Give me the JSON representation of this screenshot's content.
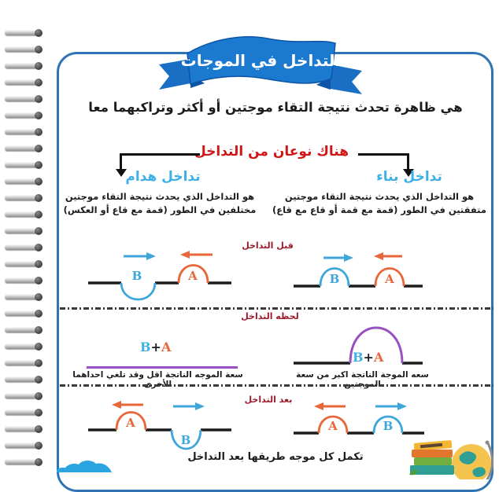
{
  "colors": {
    "banner_blue": "#1c79d0",
    "banner_dark_blue": "#0c55a6",
    "box_border_blue": "#2e74b5",
    "headline_red": "#d01616",
    "stage_label_maroon": "#9b1b2d",
    "type_heading_blue": "#3fb0e5",
    "wave_orange": "#e7663a",
    "wave_blue": "#3ea6db",
    "wave_purple": "#9950c0",
    "text_ink": "#1c1c1c"
  },
  "banner": {
    "title": "التداخل في الموجات"
  },
  "intro": {
    "definition": "هي ظاهرة تحدث نتيجة التقاء موجتين أو أكثر وتراكبهما معا"
  },
  "branch": {
    "header": "هناك نوعان من التداخل"
  },
  "types": {
    "constructive": {
      "name": "تداخل بناء",
      "definition": "هو التداخل الذي يحدث نتيجة التقاء موجتين متفقتين في الطور (قمة مع قمة أو قاع مع قاع)",
      "result_caption": "سعه الموجة الناتجة اكبر من سعة الموجتين"
    },
    "destructive": {
      "name": "تداخل هدام",
      "definition": "هو التداخل الذي يحدث نتيجة التقاء موجتين مختلفين في الطور (قمة مع قاع أو العكس)",
      "result_caption": "سعة الموجه الناتجة اقل وقد تلغي احداهما الأخرى"
    }
  },
  "stages": {
    "before": "قبل التداخل",
    "during": "لحظه التداخل",
    "after": "بعد التداخل"
  },
  "footer": {
    "note": "تكمل كل موجه طريقها بعد التداخل"
  },
  "wave_labels": {
    "a": "A",
    "b": "B",
    "plus": "+"
  }
}
